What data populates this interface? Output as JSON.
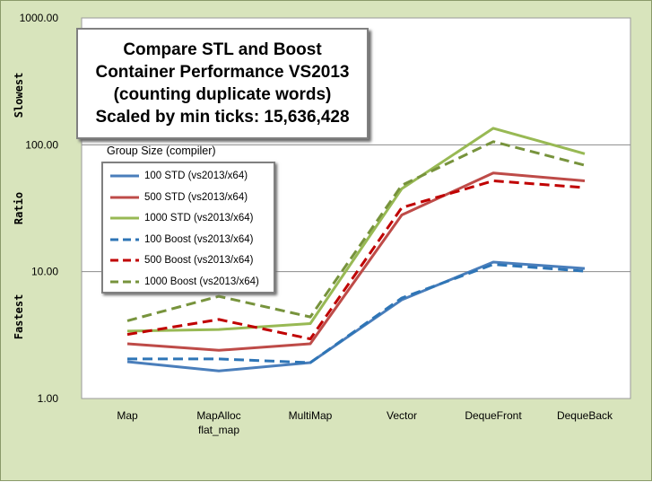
{
  "chart_data": {
    "type": "line",
    "title_lines": [
      "Compare STL and Boost",
      "Container Performance VS2013",
      "(counting duplicate words)",
      "Scaled by min ticks: 15,636,428"
    ],
    "categories": [
      "Map",
      "MapAlloc\nflat_map",
      "MultiMap",
      "Vector",
      "DequeFront",
      "DequeBack"
    ],
    "y_scale": "log",
    "ylim": [
      1,
      1000
    ],
    "y_ticks": [
      "1.00",
      "10.00",
      "100.00",
      "1000.00"
    ],
    "y_side_labels": {
      "top": "Slowest",
      "middle": "Ratio",
      "bottom": "Fastest"
    },
    "legend_title": "Group Size (compiler)",
    "legend_placement": "left",
    "grid": true,
    "series": [
      {
        "name": "100 STD (vs2013/x64)",
        "color": "#4a7ebb",
        "dash": false,
        "values": [
          1.95,
          1.65,
          1.92,
          6.0,
          11.9,
          10.6
        ]
      },
      {
        "name": "500 STD (vs2013/x64)",
        "color": "#be4b48",
        "dash": false,
        "values": [
          2.7,
          2.4,
          2.7,
          28,
          60,
          52
        ]
      },
      {
        "name": "1000 STD (vs2013/x64)",
        "color": "#98b954",
        "dash": false,
        "values": [
          3.4,
          3.5,
          3.9,
          45,
          135,
          85
        ]
      },
      {
        "name": "100 Boost (vs2013/x64)",
        "color": "#2e75b6",
        "dash": true,
        "values": [
          2.05,
          2.05,
          1.92,
          6.2,
          11.4,
          10.1
        ]
      },
      {
        "name": "500 Boost (vs2013/x64)",
        "color": "#c00000",
        "dash": true,
        "values": [
          3.2,
          4.2,
          2.95,
          32,
          52,
          46
        ]
      },
      {
        "name": "1000 Boost (vs2013/x64)",
        "color": "#77933c",
        "dash": true,
        "values": [
          4.1,
          6.4,
          4.4,
          48,
          106,
          69
        ]
      }
    ]
  }
}
